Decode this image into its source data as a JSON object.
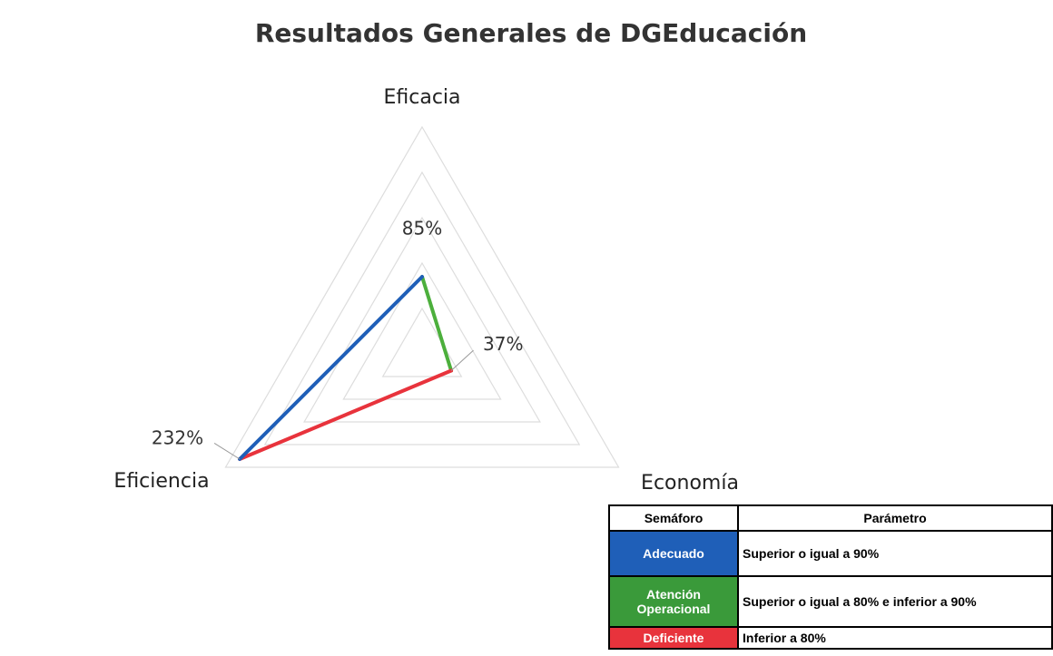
{
  "chart_data": {
    "type": "radar",
    "title": "Resultados Generales de DGEducación",
    "axes": [
      "Eficacia",
      "Economía",
      "Eficiencia"
    ],
    "values": [
      85,
      37,
      232
    ],
    "value_labels": [
      "85%",
      "37%",
      "232%"
    ],
    "rlim": [
      0,
      250
    ],
    "rticks": [
      50,
      100,
      150,
      200,
      250
    ],
    "segment_colors": [
      "#4caf3c",
      "#e8333c",
      "#1f5fb8"
    ],
    "grid": true
  },
  "table": {
    "header": [
      "Semáforo",
      "Parámetro"
    ],
    "rows": [
      [
        "Adecuado",
        "Superior o igual a 90%"
      ],
      [
        "Atención Operacional",
        "Superior o igual a 80% e inferior a 90%"
      ],
      [
        "Deficiente",
        "Inferior a 80%"
      ]
    ],
    "colors": [
      "#1f5fb8",
      "#3a9a3a",
      "#e8333c"
    ]
  }
}
